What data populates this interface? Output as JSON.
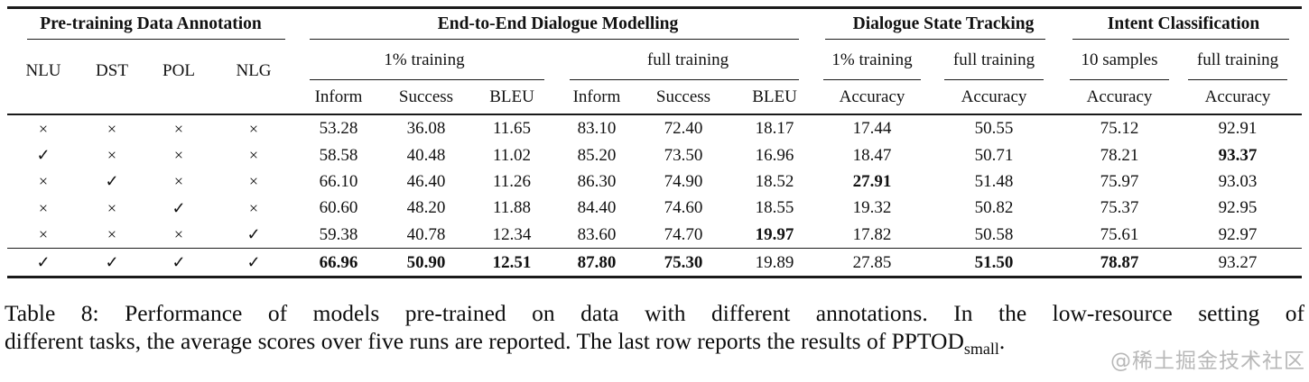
{
  "table": {
    "group_headers": [
      "Pre-training Data Annotation",
      "End-to-End Dialogue Modelling",
      "Dialogue State Tracking",
      "Intent Classification"
    ],
    "annotation_columns": [
      "NLU",
      "DST",
      "POL",
      "NLG"
    ],
    "training_settings": {
      "ete_low": "1% training",
      "ete_full": "full training",
      "dst_low": "1% training",
      "dst_full": "full training",
      "ic_low": "10 samples",
      "ic_full": "full training"
    },
    "metric_columns": [
      "Inform",
      "Success",
      "BLEU",
      "Inform",
      "Success",
      "BLEU",
      "Accuracy",
      "Accuracy",
      "Accuracy",
      "Accuracy"
    ],
    "symbols": {
      "check": "✓",
      "cross": "×"
    },
    "rows": [
      {
        "flags": [
          "cross",
          "cross",
          "cross",
          "cross"
        ],
        "values": [
          "53.28",
          "36.08",
          "11.65",
          "83.10",
          "72.40",
          "18.17",
          "17.44",
          "50.55",
          "75.12",
          "92.91"
        ],
        "bold": []
      },
      {
        "flags": [
          "check",
          "cross",
          "cross",
          "cross"
        ],
        "values": [
          "58.58",
          "40.48",
          "11.02",
          "85.20",
          "73.50",
          "16.96",
          "18.47",
          "50.71",
          "78.21",
          "93.37"
        ],
        "bold": [
          9
        ]
      },
      {
        "flags": [
          "cross",
          "check",
          "cross",
          "cross"
        ],
        "values": [
          "66.10",
          "46.40",
          "11.26",
          "86.30",
          "74.90",
          "18.52",
          "27.91",
          "51.48",
          "75.97",
          "93.03"
        ],
        "bold": [
          6
        ]
      },
      {
        "flags": [
          "cross",
          "cross",
          "check",
          "cross"
        ],
        "values": [
          "60.60",
          "48.20",
          "11.88",
          "84.40",
          "74.60",
          "18.55",
          "19.32",
          "50.82",
          "75.37",
          "92.95"
        ],
        "bold": []
      },
      {
        "flags": [
          "cross",
          "cross",
          "cross",
          "check"
        ],
        "values": [
          "59.38",
          "40.78",
          "12.34",
          "83.60",
          "74.70",
          "19.97",
          "17.82",
          "50.58",
          "75.61",
          "92.97"
        ],
        "bold": [
          5
        ]
      },
      {
        "flags": [
          "check",
          "check",
          "check",
          "check"
        ],
        "values": [
          "66.96",
          "50.90",
          "12.51",
          "87.80",
          "75.30",
          "19.89",
          "27.85",
          "51.50",
          "78.87",
          "93.27"
        ],
        "bold": [
          0,
          1,
          2,
          3,
          4,
          7,
          8
        ]
      }
    ]
  },
  "caption": {
    "line1": "Table 8:  Performance of models pre-trained on data with different annotations.  In the low-resource setting of",
    "line2_text": "different tasks, the average scores over five runs are reported. The last row reports the results of PPTOD",
    "line2_subscript": "small",
    "line2_end": "."
  },
  "watermark": "@稀土掘金技术社区"
}
